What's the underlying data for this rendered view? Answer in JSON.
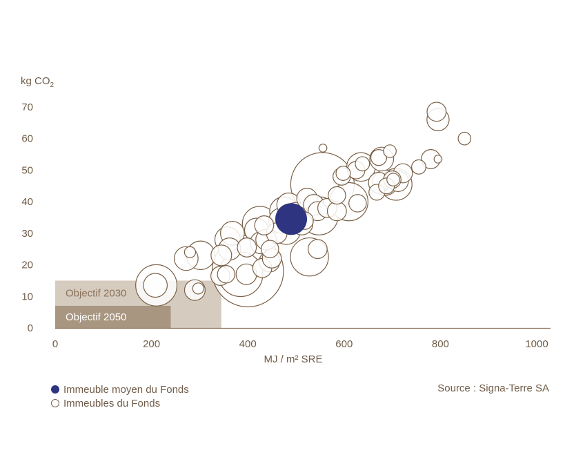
{
  "chart_data": {
    "type": "scatter",
    "y_label_prefix": "kg CO",
    "y_label_subscript": "2",
    "xlabel": "MJ / m² SRE",
    "xlim": [
      0,
      1000
    ],
    "ylim": [
      0,
      70
    ],
    "x_ticks": [
      0,
      200,
      400,
      600,
      800,
      1000
    ],
    "y_ticks": [
      0,
      10,
      20,
      30,
      40,
      50,
      60,
      70
    ],
    "targets": [
      {
        "label": "Objectif 2030",
        "x_max": 345,
        "y_max": 15,
        "color": "#d6cbbf",
        "text_color": "#8a7258"
      },
      {
        "label": "Objectif 2050",
        "x_max": 240,
        "y_max": 7,
        "color": "#a89680",
        "text_color": "#ffffff"
      }
    ],
    "series": [
      {
        "name": "Immeubles du Fonds",
        "style": "hollow",
        "color": "#7a6148",
        "points": [
          {
            "x": 210,
            "y": 13.5,
            "r": 2.6
          },
          {
            "x": 208,
            "y": 13.5,
            "r": 1.5
          },
          {
            "x": 290,
            "y": 12,
            "r": 1.3
          },
          {
            "x": 297,
            "y": 12.5,
            "r": 0.7
          },
          {
            "x": 272,
            "y": 22,
            "r": 1.5
          },
          {
            "x": 280,
            "y": 24,
            "r": 0.7
          },
          {
            "x": 302,
            "y": 23,
            "r": 1.8
          },
          {
            "x": 343,
            "y": 16.5,
            "r": 1.2
          },
          {
            "x": 355,
            "y": 17,
            "r": 1.1
          },
          {
            "x": 400,
            "y": 18,
            "r": 4.5
          },
          {
            "x": 385,
            "y": 17,
            "r": 2.8
          },
          {
            "x": 397,
            "y": 17,
            "r": 1.3
          },
          {
            "x": 345,
            "y": 23,
            "r": 1.3
          },
          {
            "x": 362,
            "y": 25,
            "r": 1.4
          },
          {
            "x": 358,
            "y": 28,
            "r": 1.6
          },
          {
            "x": 368,
            "y": 30,
            "r": 1.5
          },
          {
            "x": 398,
            "y": 25.5,
            "r": 1.2
          },
          {
            "x": 428,
            "y": 27,
            "r": 1.4
          },
          {
            "x": 438,
            "y": 28,
            "r": 1.3
          },
          {
            "x": 418,
            "y": 31,
            "r": 1.5
          },
          {
            "x": 425,
            "y": 33,
            "r": 2.2
          },
          {
            "x": 434,
            "y": 32.5,
            "r": 1.2
          },
          {
            "x": 446,
            "y": 25,
            "r": 1.1
          },
          {
            "x": 430,
            "y": 19,
            "r": 1.2
          },
          {
            "x": 445,
            "y": 21,
            "r": 1.3
          },
          {
            "x": 450,
            "y": 22,
            "r": 1.2
          },
          {
            "x": 460,
            "y": 30,
            "r": 1.3
          },
          {
            "x": 470,
            "y": 34,
            "r": 1.6
          },
          {
            "x": 475,
            "y": 37,
            "r": 1.8
          },
          {
            "x": 480,
            "y": 31,
            "r": 1.8
          },
          {
            "x": 486,
            "y": 34,
            "r": 1.2
          },
          {
            "x": 485,
            "y": 39,
            "r": 1.5
          },
          {
            "x": 500,
            "y": 36,
            "r": 1.5
          },
          {
            "x": 512,
            "y": 33,
            "r": 1.4
          },
          {
            "x": 518,
            "y": 34,
            "r": 1.1
          },
          {
            "x": 523,
            "y": 41,
            "r": 1.3
          },
          {
            "x": 537,
            "y": 39,
            "r": 1.3
          },
          {
            "x": 545,
            "y": 37,
            "r": 1.2
          },
          {
            "x": 555,
            "y": 45.5,
            "r": 4.0
          },
          {
            "x": 548,
            "y": 35.5,
            "r": 2.4
          },
          {
            "x": 565,
            "y": 38,
            "r": 1.2
          },
          {
            "x": 528,
            "y": 22.5,
            "r": 2.4
          },
          {
            "x": 545,
            "y": 25,
            "r": 1.2
          },
          {
            "x": 585,
            "y": 37,
            "r": 1.2
          },
          {
            "x": 610,
            "y": 40,
            "r": 2.4
          },
          {
            "x": 628,
            "y": 39.5,
            "r": 1.1
          },
          {
            "x": 585,
            "y": 42,
            "r": 1.1
          },
          {
            "x": 595,
            "y": 48,
            "r": 1.1
          },
          {
            "x": 598,
            "y": 49,
            "r": 0.9
          },
          {
            "x": 556,
            "y": 57,
            "r": 0.5
          },
          {
            "x": 625,
            "y": 50,
            "r": 1.1
          },
          {
            "x": 635,
            "y": 51,
            "r": 1.8
          },
          {
            "x": 638,
            "y": 52,
            "r": 0.9
          },
          {
            "x": 668,
            "y": 43,
            "r": 1.0
          },
          {
            "x": 672,
            "y": 46,
            "r": 1.3
          },
          {
            "x": 685,
            "y": 46,
            "r": 1.6
          },
          {
            "x": 688,
            "y": 45,
            "r": 1.0
          },
          {
            "x": 700,
            "y": 47,
            "r": 1.1
          },
          {
            "x": 708,
            "y": 45.5,
            "r": 2.0
          },
          {
            "x": 712,
            "y": 46.5,
            "r": 1.3
          },
          {
            "x": 722,
            "y": 49,
            "r": 1.2
          },
          {
            "x": 702,
            "y": 47,
            "r": 0.8
          },
          {
            "x": 672,
            "y": 54,
            "r": 1.0
          },
          {
            "x": 678,
            "y": 53.5,
            "r": 1.5
          },
          {
            "x": 695,
            "y": 56,
            "r": 0.8
          },
          {
            "x": 755,
            "y": 51,
            "r": 0.9
          },
          {
            "x": 780,
            "y": 53.5,
            "r": 1.2
          },
          {
            "x": 795,
            "y": 53.5,
            "r": 0.5
          },
          {
            "x": 792,
            "y": 68.5,
            "r": 1.2
          },
          {
            "x": 795,
            "y": 66,
            "r": 1.4
          },
          {
            "x": 850,
            "y": 60,
            "r": 0.8
          }
        ]
      },
      {
        "name": "Immeuble moyen du Fonds",
        "style": "filled",
        "color": "#2e3480",
        "points": [
          {
            "x": 490,
            "y": 34.5,
            "r": 2.0
          }
        ]
      }
    ]
  },
  "legend": [
    {
      "label": "Immeuble moyen du Fonds",
      "style": "filled",
      "color": "#2e3480"
    },
    {
      "label": "Immeubles du Fonds",
      "style": "hollow",
      "color": "#7a6148"
    }
  ],
  "source": "Source : Signa-Terre SA"
}
